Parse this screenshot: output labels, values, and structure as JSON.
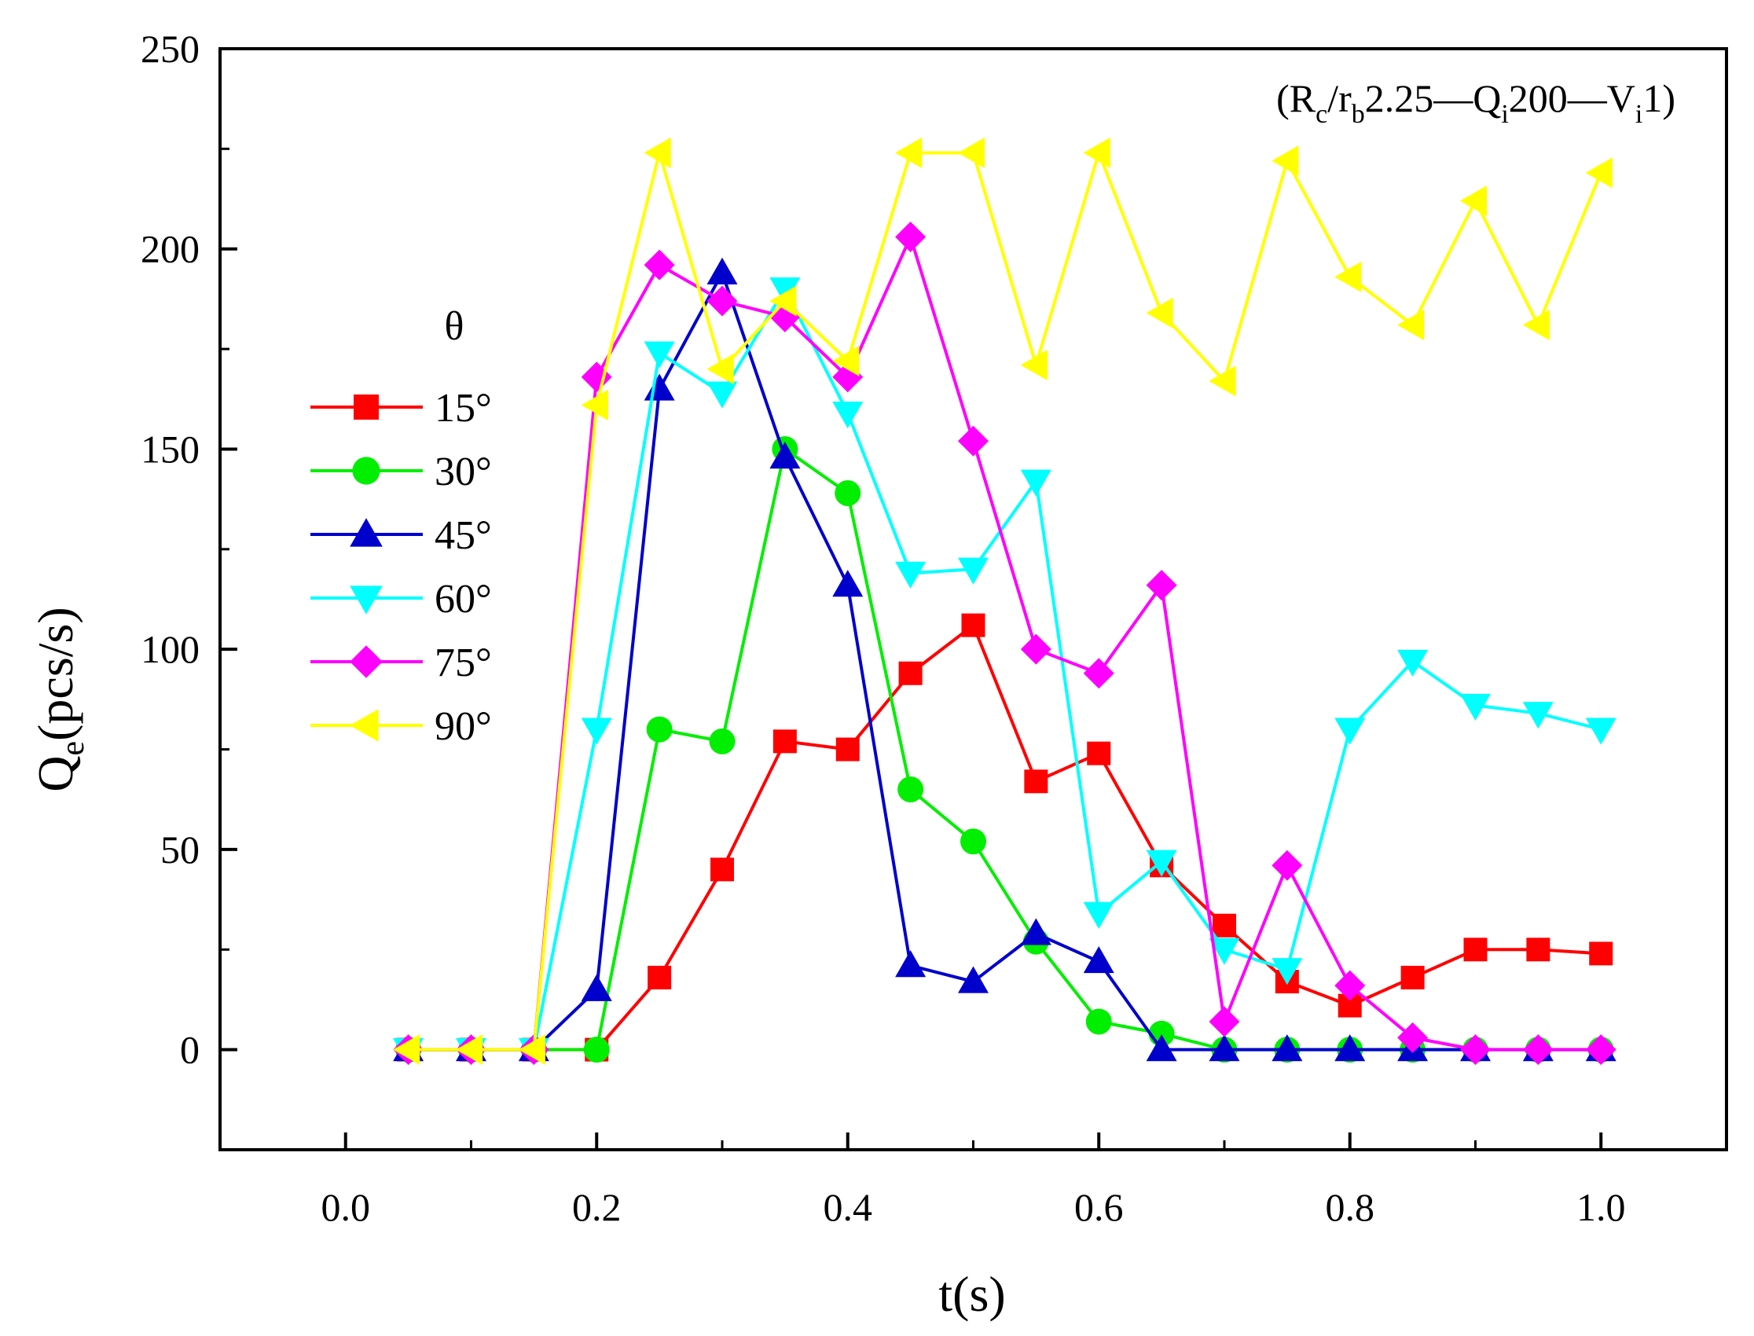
{
  "chart_data": {
    "type": "line",
    "xlabel_main": "t",
    "xlabel_unit": "(s)",
    "ylabel_main": "Q",
    "ylabel_sub": "e",
    "ylabel_unit": "(pcs/s)",
    "xlim": [
      -0.1,
      1.1
    ],
    "ylim": [
      -25,
      250
    ],
    "xticks": [
      0.0,
      0.2,
      0.4,
      0.6,
      0.8,
      1.0
    ],
    "xtick_labels": [
      "0.0",
      "0.2",
      "0.4",
      "0.6",
      "0.8",
      "1.0"
    ],
    "yticks": [
      0,
      50,
      100,
      150,
      200,
      250
    ],
    "ytick_labels": [
      "0",
      "50",
      "100",
      "150",
      "200",
      "250"
    ],
    "legend_title": "θ",
    "legend_position": "left-middle",
    "annotation": {
      "open": "(R",
      "sub1": "c",
      "mid1": "/r",
      "sub2": "b",
      "mid2": "2.25—Q",
      "sub3": "i",
      "mid3": "200—V",
      "sub4": "i",
      "close": "1)"
    },
    "x": [
      0.05,
      0.1,
      0.15,
      0.2,
      0.25,
      0.3,
      0.35,
      0.4,
      0.45,
      0.5,
      0.55,
      0.6,
      0.65,
      0.7,
      0.75,
      0.8,
      0.85,
      0.9,
      0.95,
      1.0
    ],
    "series": [
      {
        "name": "15°",
        "color": "#ff0000",
        "marker": "square",
        "values": [
          0,
          0,
          0,
          0,
          18,
          45,
          77,
          75,
          94,
          106,
          67,
          74,
          46,
          31,
          17,
          11,
          18,
          25,
          25,
          24
        ]
      },
      {
        "name": "30°",
        "color": "#00ee00",
        "marker": "circle",
        "values": [
          0,
          0,
          0,
          0,
          80,
          77,
          150,
          139,
          65,
          52,
          27,
          7,
          4,
          0,
          0,
          0,
          0,
          0,
          0,
          0
        ]
      },
      {
        "name": "45°",
        "color": "#0000cc",
        "marker": "triangle-up",
        "values": [
          0,
          0,
          0,
          15,
          165,
          194,
          148,
          116,
          21,
          17,
          29,
          22,
          0,
          0,
          0,
          0,
          0,
          0,
          0,
          0
        ]
      },
      {
        "name": "60°",
        "color": "#00ffff",
        "marker": "triangle-down",
        "values": [
          0,
          0,
          0,
          80,
          174,
          164,
          190,
          159,
          119,
          120,
          142,
          34,
          47,
          25,
          20,
          80,
          97,
          86,
          84,
          80
        ]
      },
      {
        "name": "75°",
        "color": "#ff00ff",
        "marker": "diamond",
        "values": [
          0,
          0,
          0,
          168,
          196,
          187,
          183,
          168,
          203,
          152,
          100,
          94,
          116,
          7,
          46,
          16,
          3,
          0,
          0,
          0
        ]
      },
      {
        "name": "90°",
        "color": "#ffff00",
        "marker": "triangle-left",
        "values": [
          0,
          0,
          0,
          161,
          224,
          170,
          187,
          172,
          224,
          224,
          171,
          224,
          184,
          167,
          222,
          193,
          181,
          212,
          181,
          219
        ]
      }
    ]
  }
}
